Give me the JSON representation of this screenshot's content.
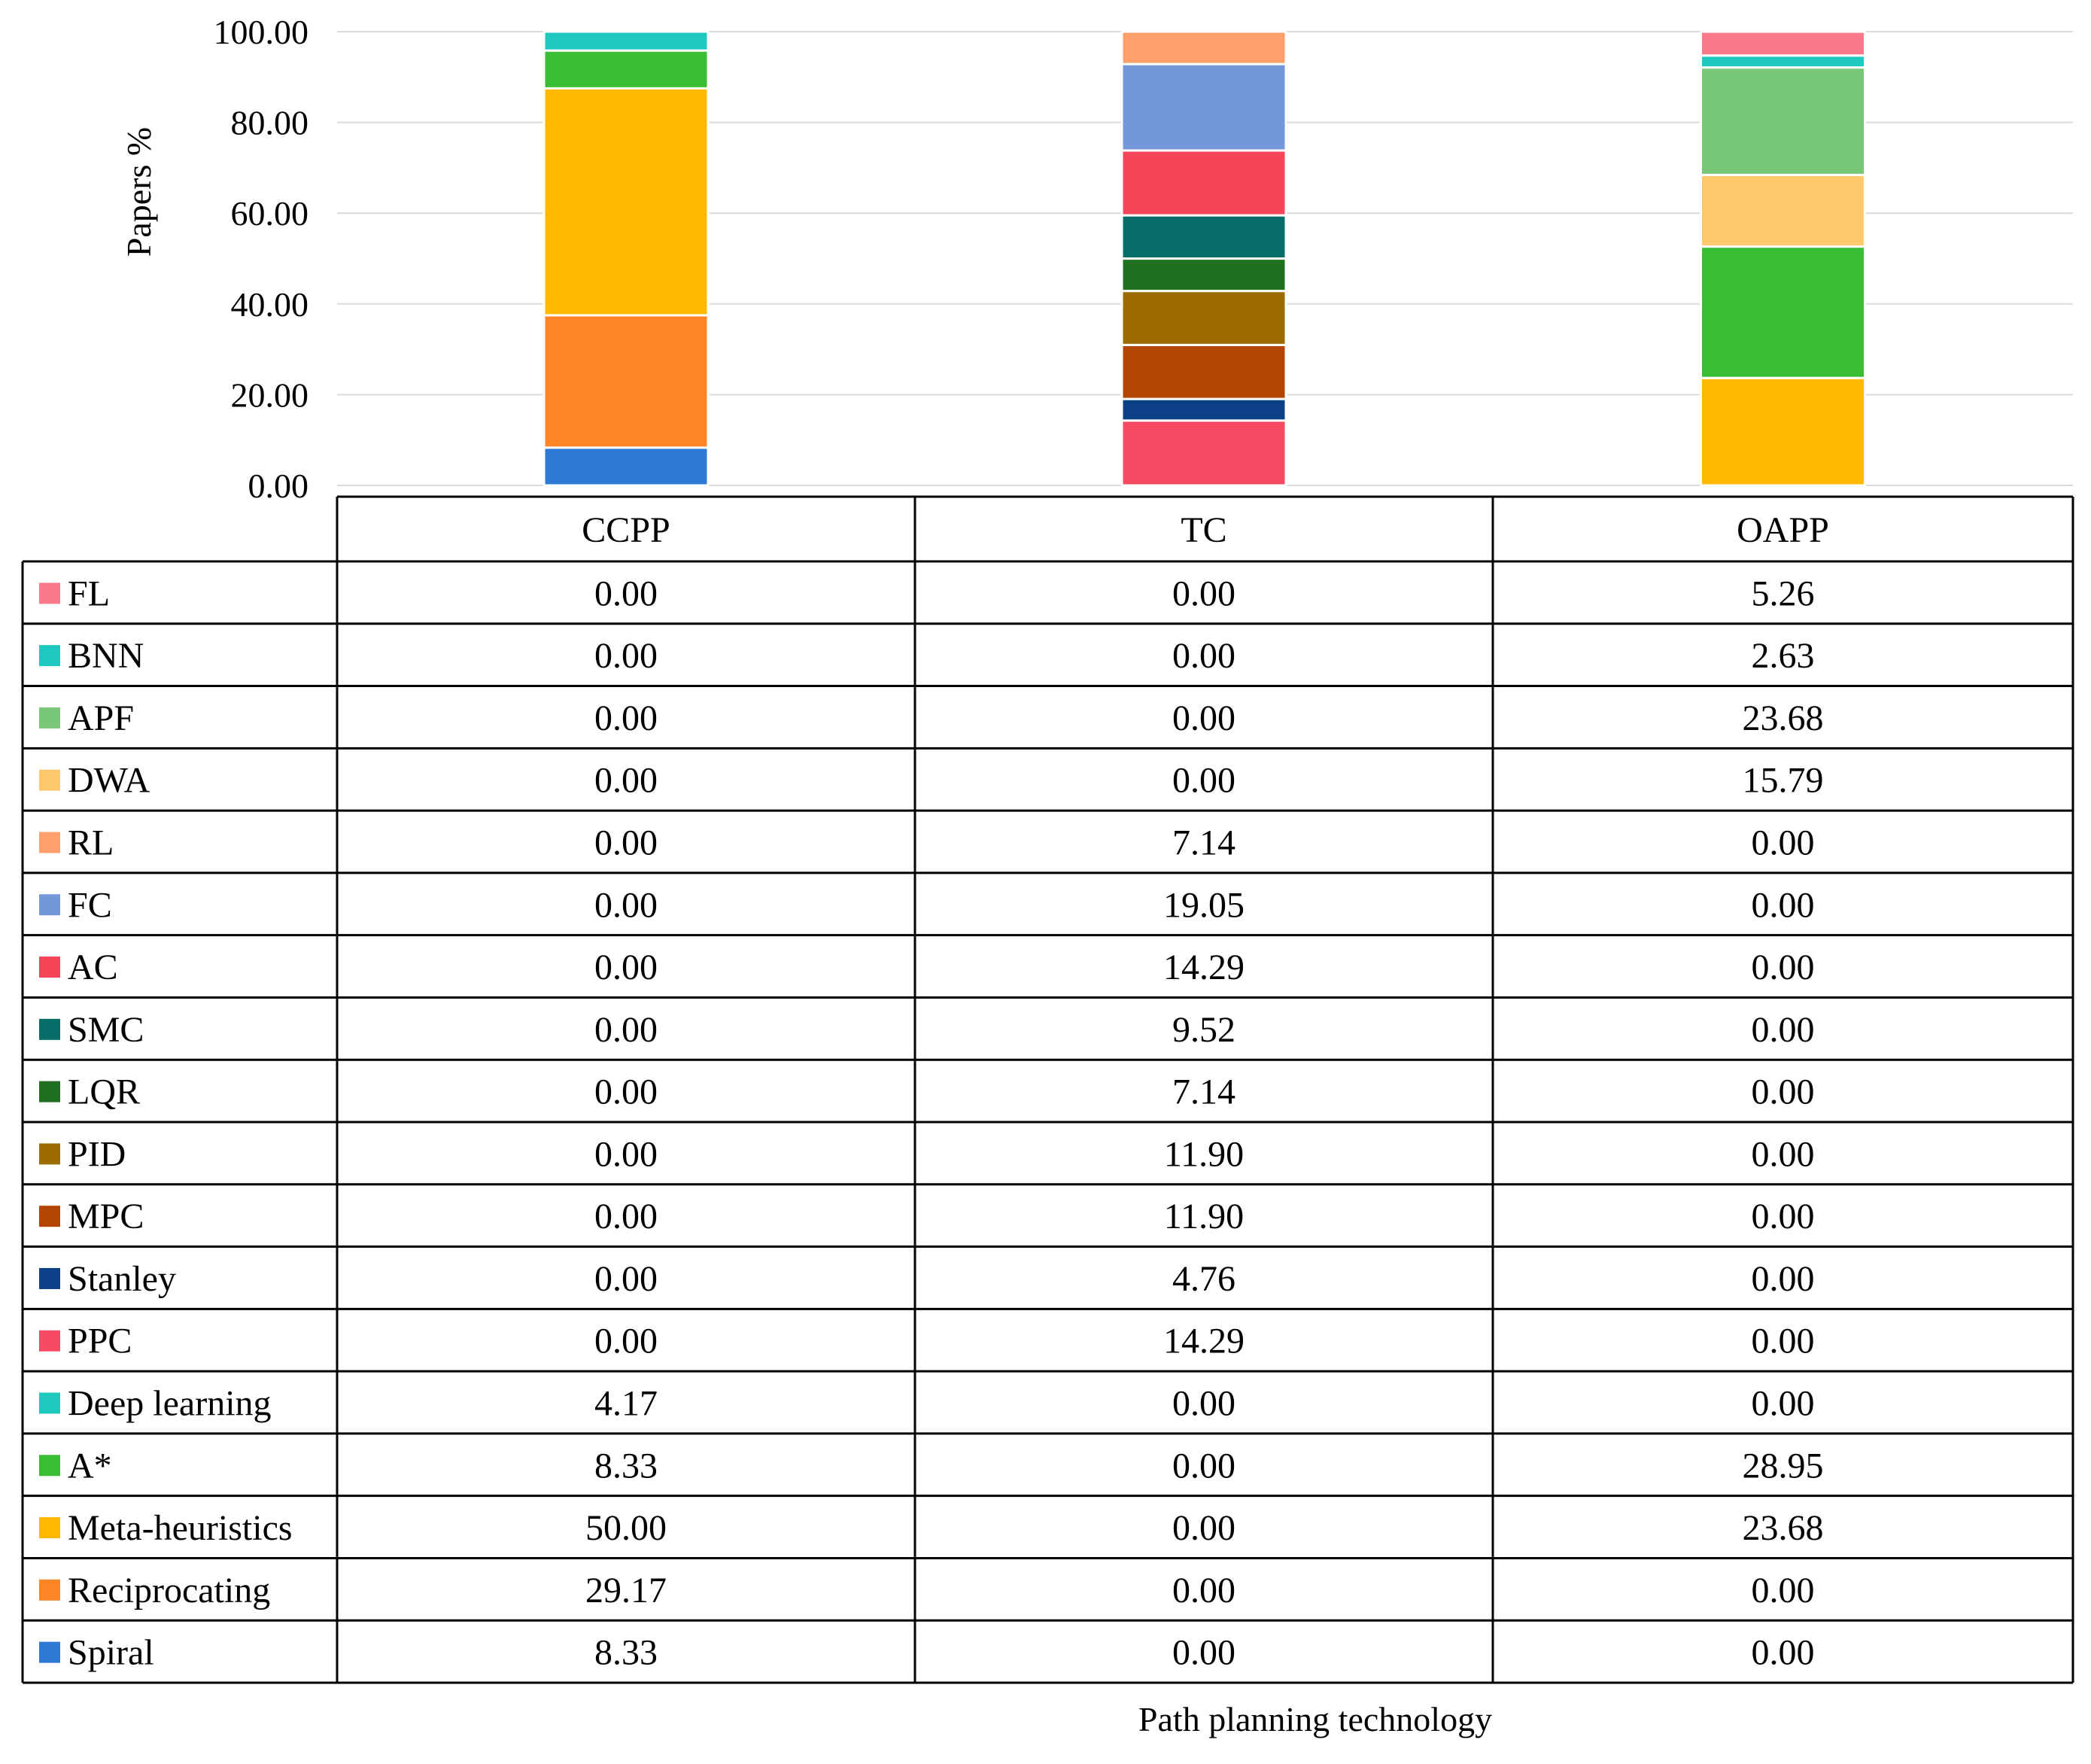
{
  "chart_data": {
    "type": "bar",
    "stacked": true,
    "title": "",
    "xlabel": "Path planning technology",
    "ylabel": "Papers  %",
    "ylim": [
      0,
      100
    ],
    "yticks": [
      "0.00",
      "20.00",
      "40.00",
      "60.00",
      "80.00",
      "100.00"
    ],
    "grid": true,
    "legend_position": "table-left",
    "categories": [
      "CCPP",
      "TC",
      "OAPP"
    ],
    "series": [
      {
        "name": "Spiral",
        "color": "#2e78d6",
        "values": [
          "8.33",
          "0.00",
          "0.00"
        ]
      },
      {
        "name": "Reciprocating",
        "color": "#ff8424",
        "values": [
          "29.17",
          "0.00",
          "0.00"
        ]
      },
      {
        "name": "Meta-heuristics",
        "color": "#ffb800",
        "values": [
          "50.00",
          "0.00",
          "23.68"
        ]
      },
      {
        "name": "A*",
        "color": "#39bd32",
        "values": [
          "8.33",
          "0.00",
          "28.95"
        ]
      },
      {
        "name": "Deep learning",
        "color": "#1ec9c0",
        "values": [
          "4.17",
          "0.00",
          "0.00"
        ]
      },
      {
        "name": "PPC",
        "color": "#f74a62",
        "values": [
          "0.00",
          "14.29",
          "0.00"
        ]
      },
      {
        "name": "Stanley",
        "color": "#0b3f86",
        "values": [
          "0.00",
          "4.76",
          "0.00"
        ]
      },
      {
        "name": "MPC",
        "color": "#b34500",
        "values": [
          "0.00",
          "11.90",
          "0.00"
        ]
      },
      {
        "name": "PID",
        "color": "#9c6c00",
        "values": [
          "0.00",
          "11.90",
          "0.00"
        ]
      },
      {
        "name": "LQR",
        "color": "#207020",
        "values": [
          "0.00",
          "7.14",
          "0.00"
        ]
      },
      {
        "name": "SMC",
        "color": "#066d68",
        "values": [
          "0.00",
          "9.52",
          "0.00"
        ]
      },
      {
        "name": "AC",
        "color": "#f54558",
        "values": [
          "0.00",
          "14.29",
          "0.00"
        ]
      },
      {
        "name": "FC",
        "color": "#7397d8",
        "values": [
          "0.00",
          "19.05",
          "0.00"
        ]
      },
      {
        "name": "RL",
        "color": "#ff9f6e",
        "values": [
          "0.00",
          "7.14",
          "0.00"
        ]
      },
      {
        "name": "DWA",
        "color": "#ffc86a",
        "values": [
          "0.00",
          "0.00",
          "15.79"
        ]
      },
      {
        "name": "APF",
        "color": "#78c878",
        "values": [
          "0.00",
          "0.00",
          "23.68"
        ]
      },
      {
        "name": "BNN",
        "color": "#1ec9c0",
        "values": [
          "0.00",
          "0.00",
          "2.63"
        ]
      },
      {
        "name": "FL",
        "color": "#f87a8a",
        "values": [
          "0.00",
          "0.00",
          "5.26"
        ]
      }
    ]
  }
}
